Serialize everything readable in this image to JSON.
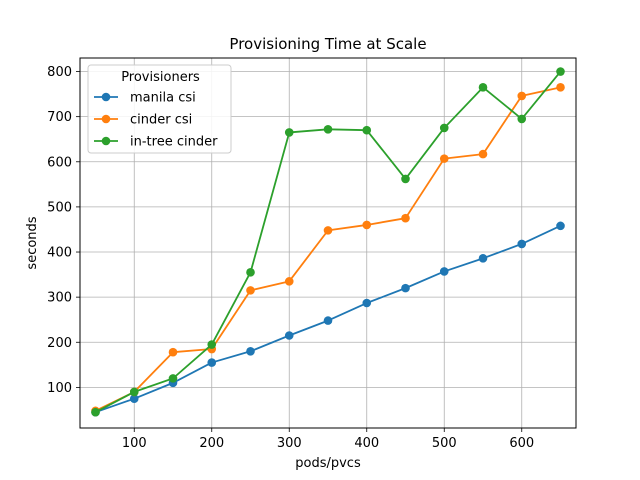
{
  "chart_data": {
    "type": "line",
    "title": "Provisioning Time at Scale",
    "xlabel": "pods/pvcs",
    "ylabel": "seconds",
    "xlim": [
      30,
      670
    ],
    "ylim": [
      10,
      830
    ],
    "xticks": [
      100,
      200,
      300,
      400,
      500,
      600
    ],
    "yticks": [
      100,
      200,
      300,
      400,
      500,
      600,
      700,
      800
    ],
    "grid": true,
    "legend": {
      "title": "Provisioners",
      "placement": "top-left"
    },
    "x": [
      50,
      100,
      150,
      200,
      250,
      300,
      350,
      400,
      450,
      500,
      550,
      600,
      650
    ],
    "series": [
      {
        "name": "manila csi",
        "color": "#1f77b4",
        "values": [
          45,
          75,
          110,
          155,
          180,
          215,
          248,
          287,
          320,
          357,
          386,
          418,
          458
        ]
      },
      {
        "name": "cinder csi",
        "color": "#ff7f0e",
        "values": [
          48,
          90,
          178,
          185,
          315,
          335,
          448,
          460,
          475,
          607,
          617,
          746,
          765
        ]
      },
      {
        "name": "in-tree cinder",
        "color": "#2ca02c",
        "values": [
          45,
          90,
          120,
          195,
          355,
          665,
          672,
          670,
          562,
          675,
          765,
          695,
          800
        ]
      }
    ]
  }
}
